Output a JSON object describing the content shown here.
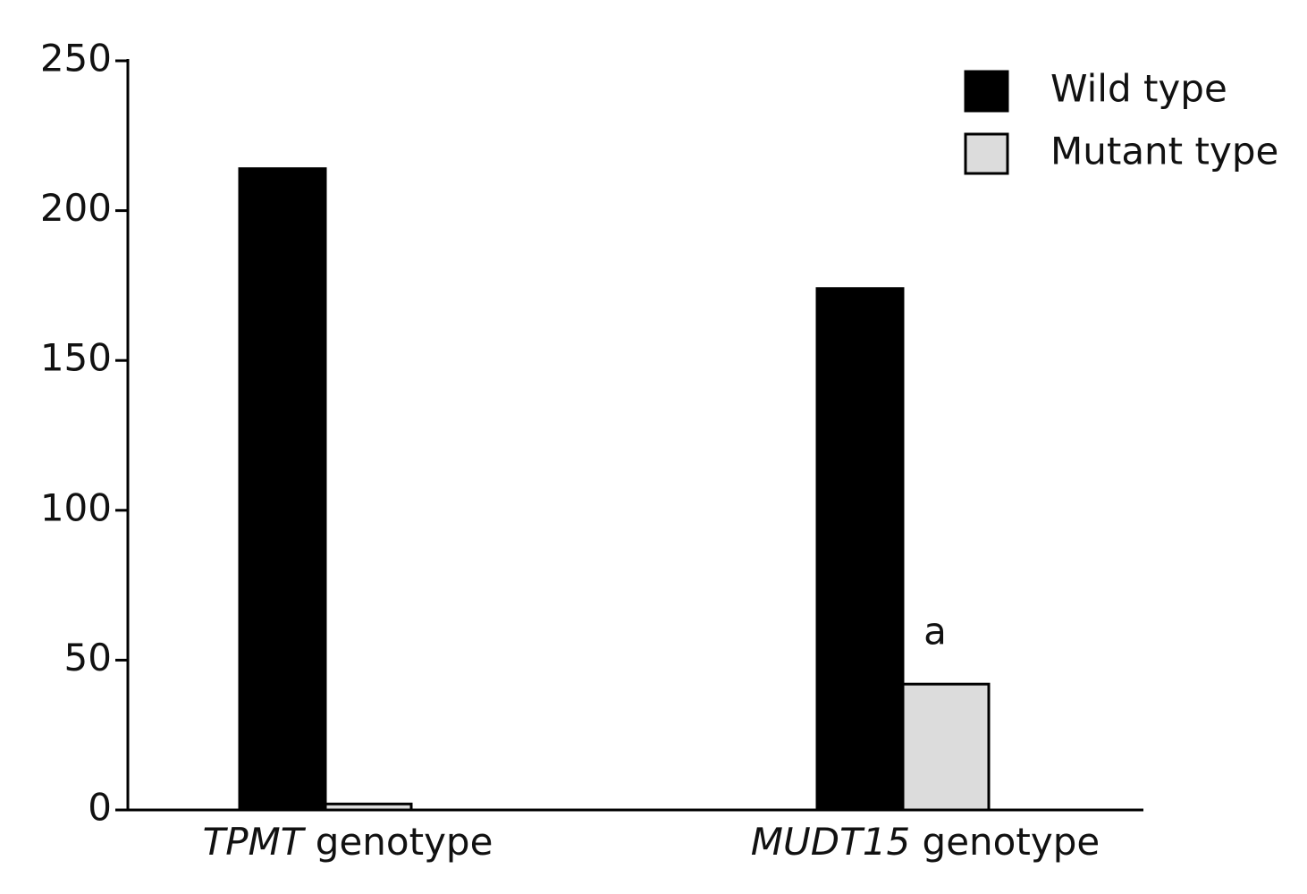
{
  "chart_data": {
    "type": "bar",
    "categories": [
      "TPMT genotype",
      "MUDT15 genotype"
    ],
    "series": [
      {
        "name": "Wild type",
        "color": "#000000",
        "values": [
          214,
          174
        ]
      },
      {
        "name": "Mutant type",
        "color": "#dcdcdc",
        "values": [
          2,
          42
        ]
      }
    ],
    "ylim": [
      0,
      250
    ],
    "yticks": [
      0,
      50,
      100,
      150,
      200,
      250
    ],
    "annotation": "a",
    "legend": "top-right"
  }
}
